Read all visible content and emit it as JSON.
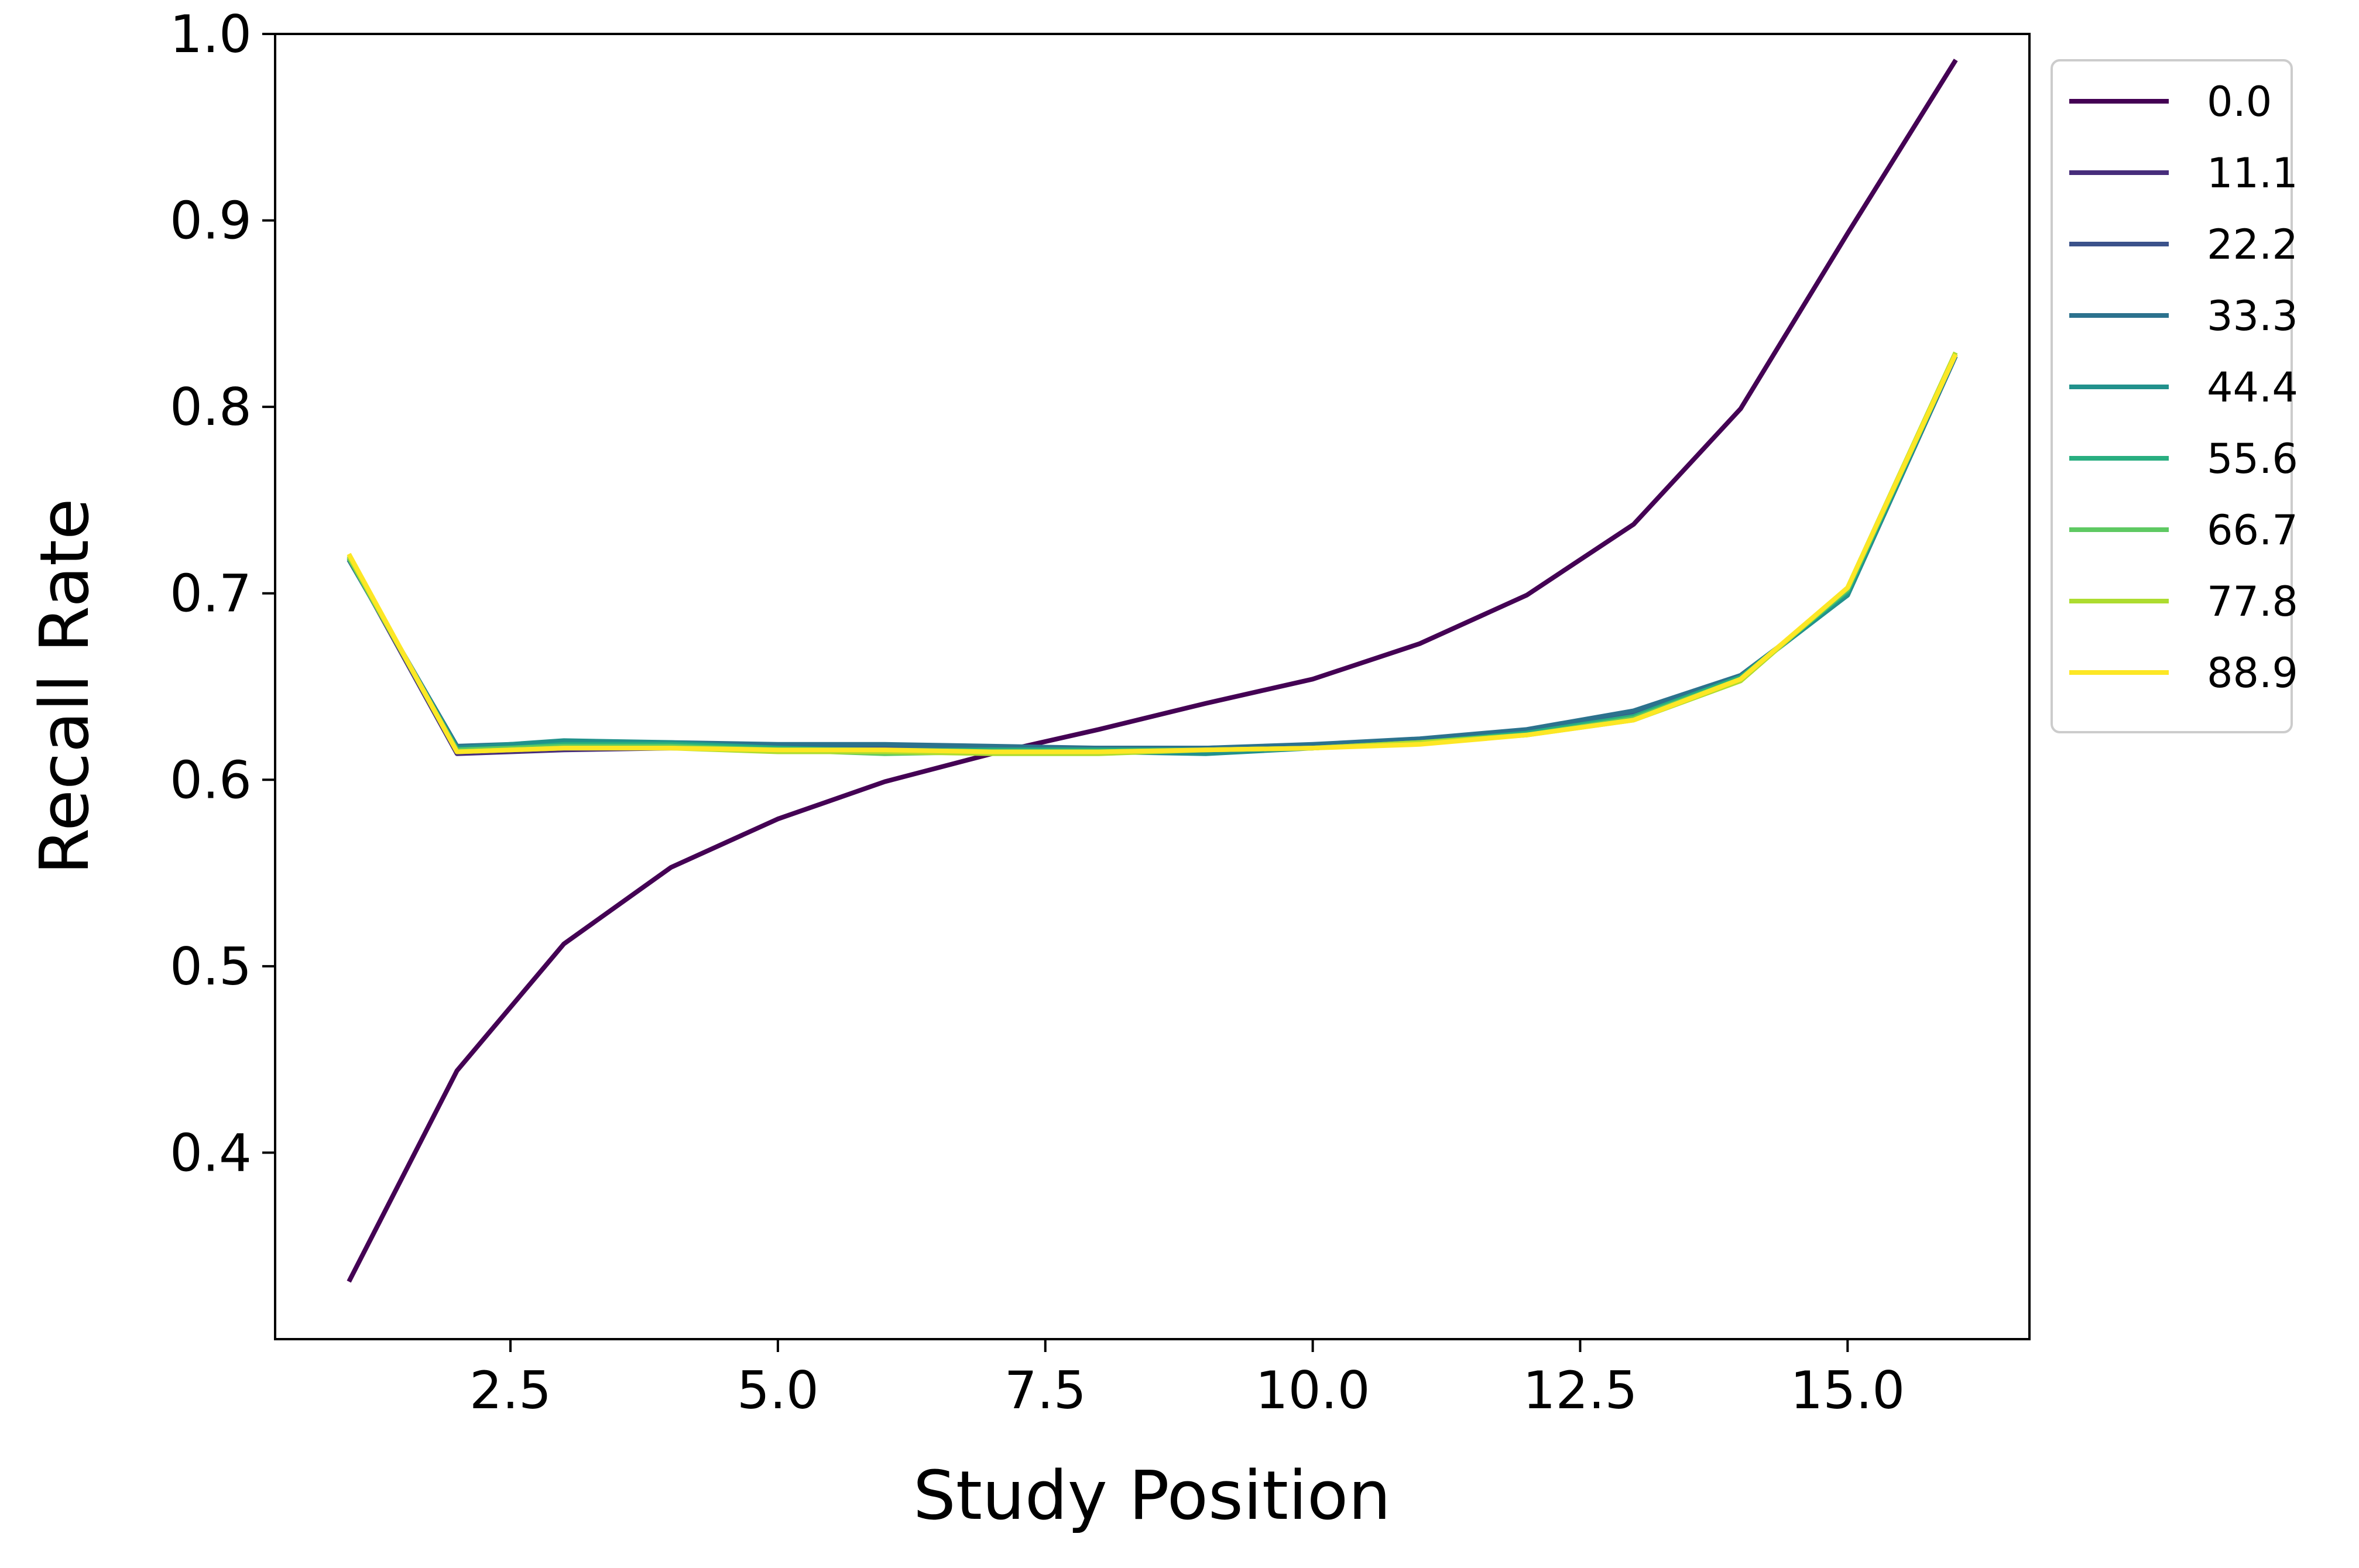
{
  "chart_data": {
    "type": "line",
    "title": "",
    "xlabel": "Study Position",
    "ylabel": "Recall Rate",
    "xlim": [
      0.3,
      16.7
    ],
    "ylim": [
      0.3,
      1.0
    ],
    "xticks": [
      "2.5",
      "5.0",
      "7.5",
      "10.0",
      "12.5",
      "15.0"
    ],
    "yticks": [
      "0.4",
      "0.5",
      "0.6",
      "0.7",
      "0.8",
      "0.9",
      "1.0"
    ],
    "grid": false,
    "legend_position": "outside upper right",
    "x": [
      1,
      2,
      3,
      4,
      5,
      6,
      7,
      8,
      9,
      10,
      11,
      12,
      13,
      14,
      15,
      16
    ],
    "series": [
      {
        "name": "0.0",
        "color": "#440154",
        "values": [
          0.332,
          0.444,
          0.512,
          0.553,
          0.579,
          0.599,
          0.614,
          0.627,
          0.641,
          0.654,
          0.673,
          0.699,
          0.737,
          0.799,
          0.893,
          0.985
        ]
      },
      {
        "name": "11.1",
        "color": "#472d7b",
        "values": [
          0.718,
          0.614,
          0.616,
          0.617,
          0.617,
          0.616,
          0.616,
          0.616,
          0.617,
          0.618,
          0.62,
          0.625,
          0.633,
          0.655,
          0.7,
          0.827
        ]
      },
      {
        "name": "22.2",
        "color": "#3b528b",
        "values": [
          0.718,
          0.616,
          0.618,
          0.618,
          0.618,
          0.618,
          0.617,
          0.617,
          0.617,
          0.618,
          0.621,
          0.626,
          0.635,
          0.656,
          0.699,
          0.826
        ]
      },
      {
        "name": "33.3",
        "color": "#2c728e",
        "values": [
          0.717,
          0.618,
          0.62,
          0.62,
          0.619,
          0.619,
          0.618,
          0.617,
          0.617,
          0.619,
          0.622,
          0.627,
          0.637,
          0.656,
          0.699,
          0.826
        ]
      },
      {
        "name": "44.4",
        "color": "#21918c",
        "values": [
          0.718,
          0.617,
          0.621,
          0.62,
          0.617,
          0.616,
          0.616,
          0.615,
          0.614,
          0.617,
          0.62,
          0.625,
          0.634,
          0.655,
          0.699,
          0.827
        ]
      },
      {
        "name": "55.6",
        "color": "#28ae80",
        "values": [
          0.719,
          0.615,
          0.619,
          0.619,
          0.617,
          0.615,
          0.616,
          0.616,
          0.616,
          0.617,
          0.62,
          0.625,
          0.634,
          0.655,
          0.701,
          0.827
        ]
      },
      {
        "name": "66.7",
        "color": "#5ec962",
        "values": [
          0.718,
          0.616,
          0.618,
          0.618,
          0.616,
          0.614,
          0.615,
          0.615,
          0.616,
          0.617,
          0.62,
          0.624,
          0.633,
          0.654,
          0.702,
          0.827
        ]
      },
      {
        "name": "77.8",
        "color": "#addc30",
        "values": [
          0.719,
          0.615,
          0.617,
          0.617,
          0.615,
          0.615,
          0.614,
          0.614,
          0.616,
          0.617,
          0.62,
          0.624,
          0.632,
          0.653,
          0.703,
          0.828
        ]
      },
      {
        "name": "88.9",
        "color": "#fde725",
        "values": [
          0.72,
          0.615,
          0.617,
          0.617,
          0.616,
          0.616,
          0.615,
          0.615,
          0.616,
          0.617,
          0.619,
          0.624,
          0.632,
          0.654,
          0.703,
          0.827
        ]
      }
    ]
  }
}
